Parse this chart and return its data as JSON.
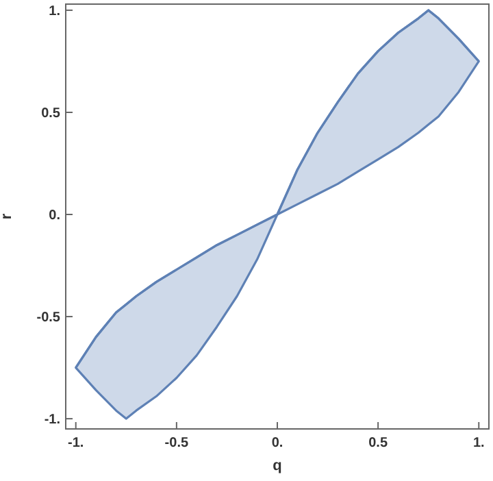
{
  "chart_data": {
    "type": "line",
    "xlabel": "q",
    "ylabel": "r",
    "xlim": [
      -1.05,
      1.05
    ],
    "ylim": [
      -1.05,
      1.03
    ],
    "xticks": [
      {
        "value": -1,
        "label": "-1."
      },
      {
        "value": -0.5,
        "label": "-0.5"
      },
      {
        "value": 0,
        "label": "0."
      },
      {
        "value": 0.5,
        "label": "0.5"
      },
      {
        "value": 1,
        "label": "1."
      }
    ],
    "yticks": [
      {
        "value": -1,
        "label": "-1."
      },
      {
        "value": -0.5,
        "label": "-0.5"
      },
      {
        "value": 0,
        "label": "0."
      },
      {
        "value": 0.5,
        "label": "0.5"
      },
      {
        "value": 1,
        "label": "1."
      }
    ],
    "grid": false,
    "series": [
      {
        "color": "#5e81b5",
        "x": [
          -1,
          -0.9,
          -0.8,
          -0.75,
          -0.7,
          -0.6,
          -0.5,
          -0.4,
          -0.3,
          -0.2,
          -0.1,
          0,
          0.1,
          0.2,
          0.3,
          0.4,
          0.5,
          0.6,
          0.7,
          0.75,
          0.8,
          0.9,
          1
        ],
        "values": [
          -0.75,
          -0.6,
          -0.48,
          -0.44,
          -0.4,
          -0.33,
          -0.27,
          -0.21,
          -0.15,
          -0.1,
          -0.05,
          0,
          0.22,
          0.4,
          0.55,
          0.69,
          0.8,
          0.89,
          0.96,
          1.0,
          0.96,
          0.86,
          0.75
        ],
        "upper": [
          -0.75,
          -0.6,
          -0.48,
          -0.44,
          -0.4,
          -0.33,
          -0.27,
          -0.21,
          -0.15,
          -0.1,
          -0.05,
          0,
          0.22,
          0.4,
          0.55,
          0.69,
          0.8,
          0.89,
          0.96,
          1.0,
          0.96,
          0.86,
          0.75
        ],
        "lower": [
          -0.75,
          -0.86,
          -0.96,
          -1.0,
          -0.96,
          -0.89,
          -0.8,
          -0.69,
          -0.55,
          -0.4,
          -0.22,
          0,
          0.05,
          0.1,
          0.15,
          0.21,
          0.27,
          0.33,
          0.4,
          0.44,
          0.48,
          0.6,
          0.75
        ]
      }
    ]
  }
}
